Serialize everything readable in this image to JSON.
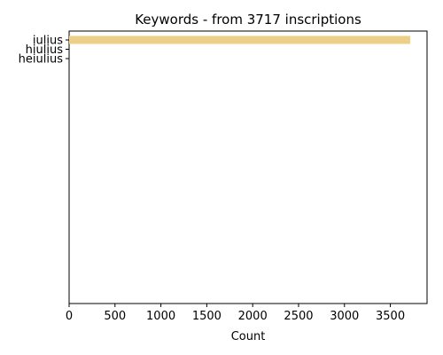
{
  "chart_data": {
    "type": "bar",
    "orientation": "horizontal",
    "title": "Keywords - from 3717 inscriptions",
    "xlabel": "Count",
    "ylabel": "",
    "categories": [
      "iulius",
      "hiulius",
      "heiulius"
    ],
    "values": [
      3717,
      0,
      0
    ],
    "xlim": [
      0,
      3900
    ],
    "xticks": [
      0,
      500,
      1000,
      1500,
      2000,
      2500,
      3000,
      3500
    ],
    "grid": false,
    "legend": "none",
    "bar_color": "#EDCF87"
  }
}
